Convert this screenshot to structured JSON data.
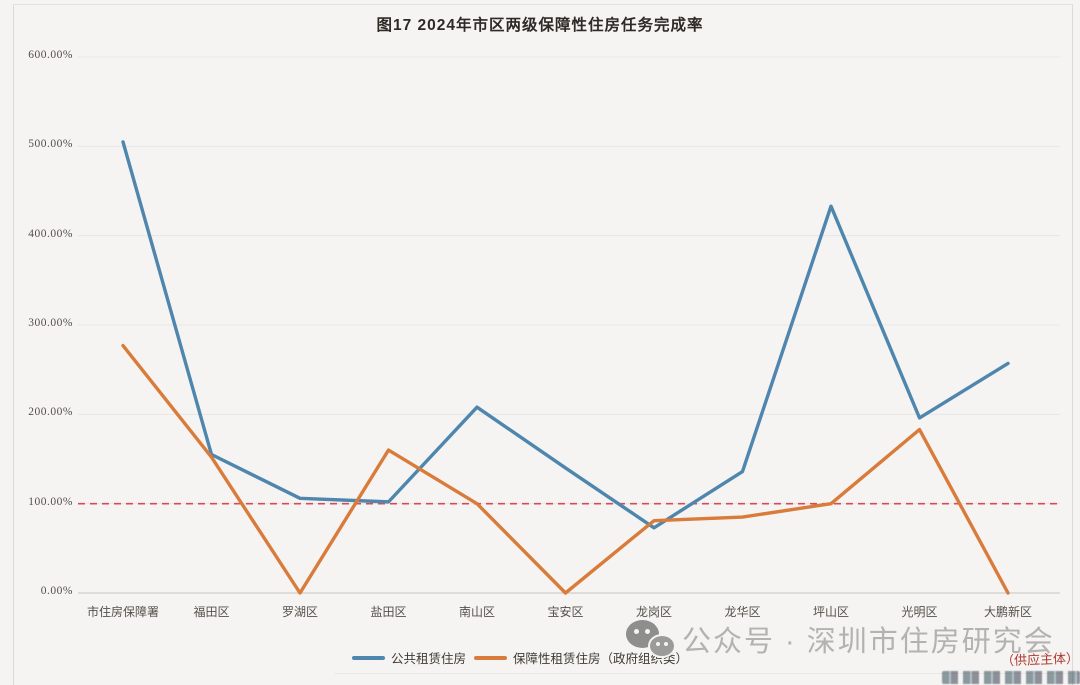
{
  "title": "图17 2024年市区两级保障性住房任务完成率",
  "chart_data": {
    "type": "line",
    "categories": [
      "市住房保障署",
      "福田区",
      "罗湖区",
      "盐田区",
      "南山区",
      "宝安区",
      "龙岗区",
      "龙华区",
      "坪山区",
      "光明区",
      "大鹏新区"
    ],
    "series": [
      {
        "name": "公共租赁住房",
        "color": "#4e86ad",
        "values": [
          505,
          155,
          106,
          102,
          208,
          140,
          73,
          136,
          433,
          196,
          257
        ]
      },
      {
        "name": "保障性租赁住房（政府组织类）",
        "color": "#d97b3a",
        "values": [
          277,
          152,
          0,
          160,
          100,
          0,
          81,
          85,
          100,
          183,
          0
        ]
      }
    ],
    "y_ticks": [
      {
        "label": "600.00%",
        "value": 600
      },
      {
        "label": "500.00%",
        "value": 500
      },
      {
        "label": "400.00%",
        "value": 400
      },
      {
        "label": "300.00%",
        "value": 300
      },
      {
        "label": "200.00%",
        "value": 200
      },
      {
        "label": "100.00%",
        "value": 100
      },
      {
        "label": "0.00%",
        "value": 0
      }
    ],
    "ylim": [
      0,
      600
    ],
    "y_unit": "percent",
    "grid": true,
    "reference_line": {
      "value": 100,
      "color": "#d94a56",
      "style": "dashed"
    },
    "legend_position": "bottom"
  },
  "watermark": {
    "text": "公众号 · 深圳市住房研究会",
    "icon": "wechat-logo"
  },
  "annotation_bottom_right": "（供应主体）"
}
